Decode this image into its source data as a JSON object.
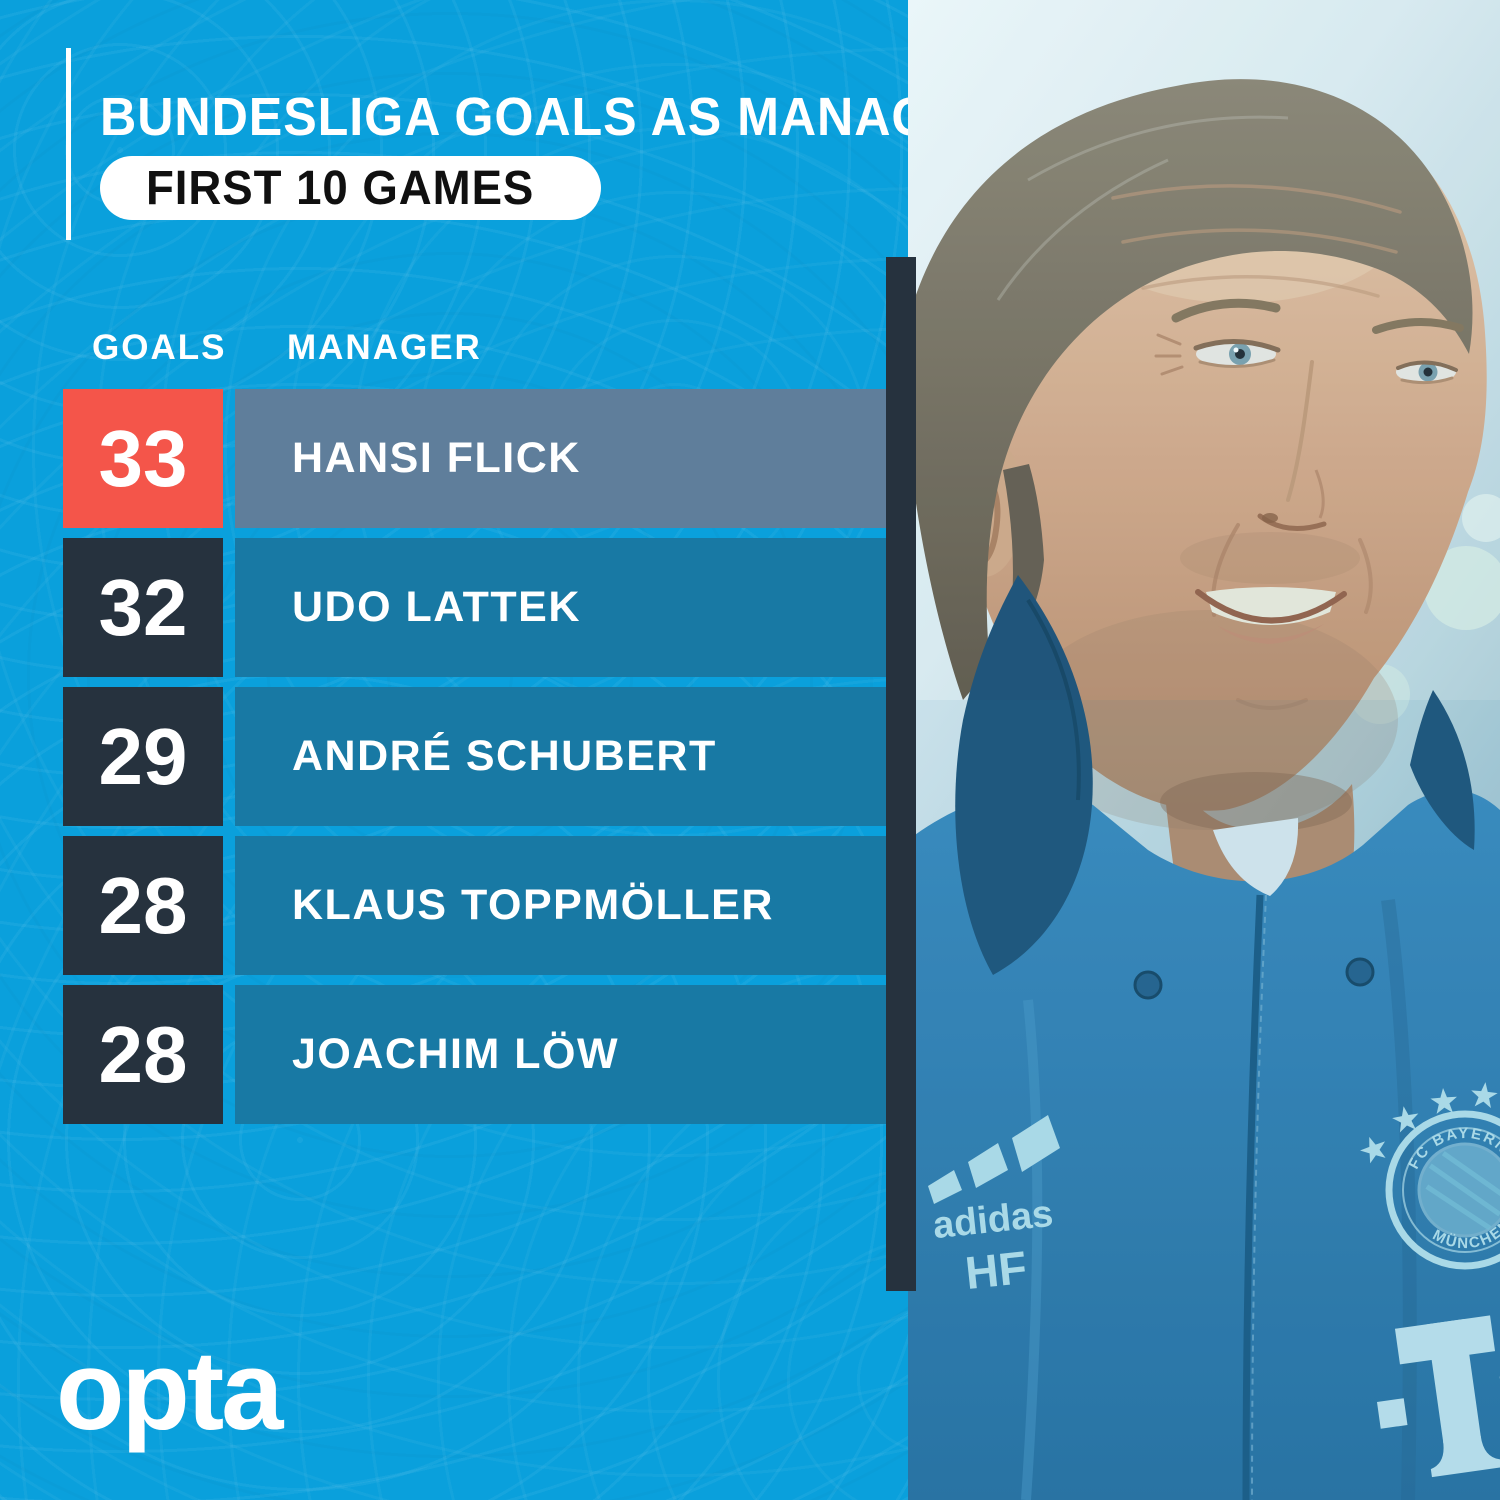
{
  "colors": {
    "canvas_cyan": "#0AA0DC",
    "row_dark_navy": "#26323E",
    "row_teal": "#1879A4",
    "highlight_red": "#F4554A",
    "highlight_slate": "#5F7E9B",
    "pill_white": "#FFFFFF",
    "text_white": "#FFFFFF",
    "pill_text_black": "#101010",
    "divider_dark": "#26323E",
    "jacket_blue": "#2F7FB4"
  },
  "header": {
    "title": "BUNDESLIGA GOALS AS MANAGER",
    "subtitle": "FIRST 10 GAMES"
  },
  "table": {
    "columns": [
      "GOALS",
      "MANAGER"
    ],
    "rows": [
      {
        "goals": "33",
        "manager": "HANSI FLICK",
        "highlight": true
      },
      {
        "goals": "32",
        "manager": "UDO LATTEK",
        "highlight": false
      },
      {
        "goals": "29",
        "manager": "ANDRÉ SCHUBERT",
        "highlight": false
      },
      {
        "goals": "28",
        "manager": "KLAUS TOPPMÖLLER",
        "highlight": false
      },
      {
        "goals": "28",
        "manager": "JOACHIM LÖW",
        "highlight": false
      }
    ]
  },
  "footer": {
    "brand": "opta"
  },
  "photo": {
    "subject": "Hansi Flick smiling in FC Bayern München training jacket",
    "jersey_brand": "adidas",
    "jersey_initials": "HF",
    "crest_top": "FC BAYERN",
    "crest_bottom": "MÜNCHEN"
  },
  "chart_data": {
    "type": "table",
    "title": "BUNDESLIGA GOALS AS MANAGER",
    "subtitle": "FIRST 10 GAMES",
    "columns": [
      "GOALS",
      "MANAGER"
    ],
    "rows": [
      [
        33,
        "HANSI FLICK"
      ],
      [
        32,
        "UDO LATTEK"
      ],
      [
        29,
        "ANDRÉ SCHUBERT"
      ],
      [
        28,
        "KLAUS TOPPMÖLLER"
      ],
      [
        28,
        "JOACHIM LÖW"
      ]
    ],
    "highlighted_row_index": 0,
    "highlight_color": "#F4554A"
  }
}
